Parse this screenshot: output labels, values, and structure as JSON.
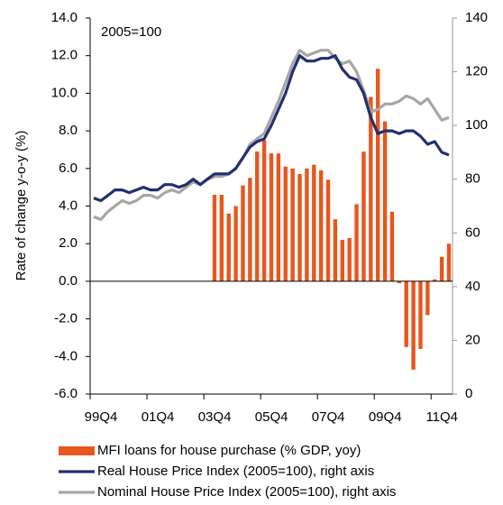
{
  "chart_data": {
    "type": "bar",
    "annotation": "2005=100",
    "y_label": "Rate of change y-o-y (%)",
    "categories": [
      "99Q4",
      null,
      null,
      null,
      null,
      null,
      null,
      null,
      "01Q4",
      null,
      null,
      null,
      null,
      null,
      null,
      null,
      "03Q4",
      null,
      null,
      null,
      null,
      null,
      null,
      null,
      "05Q4",
      null,
      null,
      null,
      null,
      null,
      null,
      null,
      "07Q4",
      null,
      null,
      null,
      null,
      null,
      null,
      null,
      "09Q4",
      null,
      null,
      null,
      null,
      null,
      null,
      null,
      "11Q4",
      null,
      null
    ],
    "ylim": [
      -6,
      14
    ],
    "yticks": [
      {
        "value": -6,
        "label": "-6.0"
      },
      {
        "value": -4,
        "label": "-4.0"
      },
      {
        "value": -2,
        "label": "-2.0"
      },
      {
        "value": 0,
        "label": "0.0"
      },
      {
        "value": 2,
        "label": "2.0"
      },
      {
        "value": 4,
        "label": "4.0"
      },
      {
        "value": 6,
        "label": "6.0"
      },
      {
        "value": 8,
        "label": "8.0"
      },
      {
        "value": 10,
        "label": "10.0"
      },
      {
        "value": 12,
        "label": "12.0"
      },
      {
        "value": 14,
        "label": "14.0"
      }
    ],
    "y2lim": [
      0,
      140
    ],
    "y2ticks": [
      0,
      20,
      40,
      60,
      80,
      100,
      120,
      140
    ],
    "series": [
      {
        "name": "MFI loans for house purchase (% GDP, yoy)",
        "type": "bar",
        "color": "#e8561e",
        "values": [
          null,
          null,
          null,
          null,
          null,
          null,
          null,
          null,
          null,
          null,
          null,
          null,
          null,
          null,
          null,
          null,
          null,
          4.6,
          4.6,
          3.6,
          4.0,
          5.1,
          5.5,
          6.9,
          7.5,
          6.8,
          6.8,
          6.1,
          6.0,
          5.7,
          6.0,
          6.2,
          5.9,
          5.4,
          3.3,
          2.2,
          2.3,
          4.1,
          6.9,
          9.8,
          11.3,
          8.5,
          3.7,
          -0.1,
          -3.5,
          -4.7,
          -3.6,
          -1.8,
          0.1,
          1.3,
          2.0
        ]
      },
      {
        "name": "Real House Price Index (2005=100), right axis",
        "type": "line",
        "axis": "y2",
        "color": "#23306e",
        "values": [
          73,
          72,
          74,
          76,
          76,
          75,
          76,
          77,
          76,
          76,
          78,
          78,
          77,
          78,
          80,
          78,
          80,
          82,
          82,
          82,
          84,
          88,
          92,
          94,
          95,
          100,
          106,
          112,
          120,
          126,
          124,
          124,
          125,
          125,
          126,
          121,
          118,
          117,
          112,
          103,
          97,
          98,
          98,
          97,
          98,
          98,
          96,
          93,
          94,
          90,
          89
        ]
      },
      {
        "name": "Nominal House Price Index (2005=100), right axis",
        "type": "line",
        "axis": "y2",
        "color": "#a6a6a6",
        "values": [
          66,
          65,
          68,
          70,
          72,
          71,
          72,
          74,
          74,
          73,
          75,
          76,
          75,
          77,
          79,
          78,
          80,
          81,
          81,
          82,
          84,
          88,
          93,
          95,
          97,
          103,
          109,
          116,
          123,
          128,
          126,
          127,
          128,
          128,
          125,
          123,
          124,
          120,
          113,
          105,
          106,
          108,
          108,
          109,
          111,
          110,
          108,
          110,
          106,
          102,
          103
        ]
      }
    ]
  }
}
